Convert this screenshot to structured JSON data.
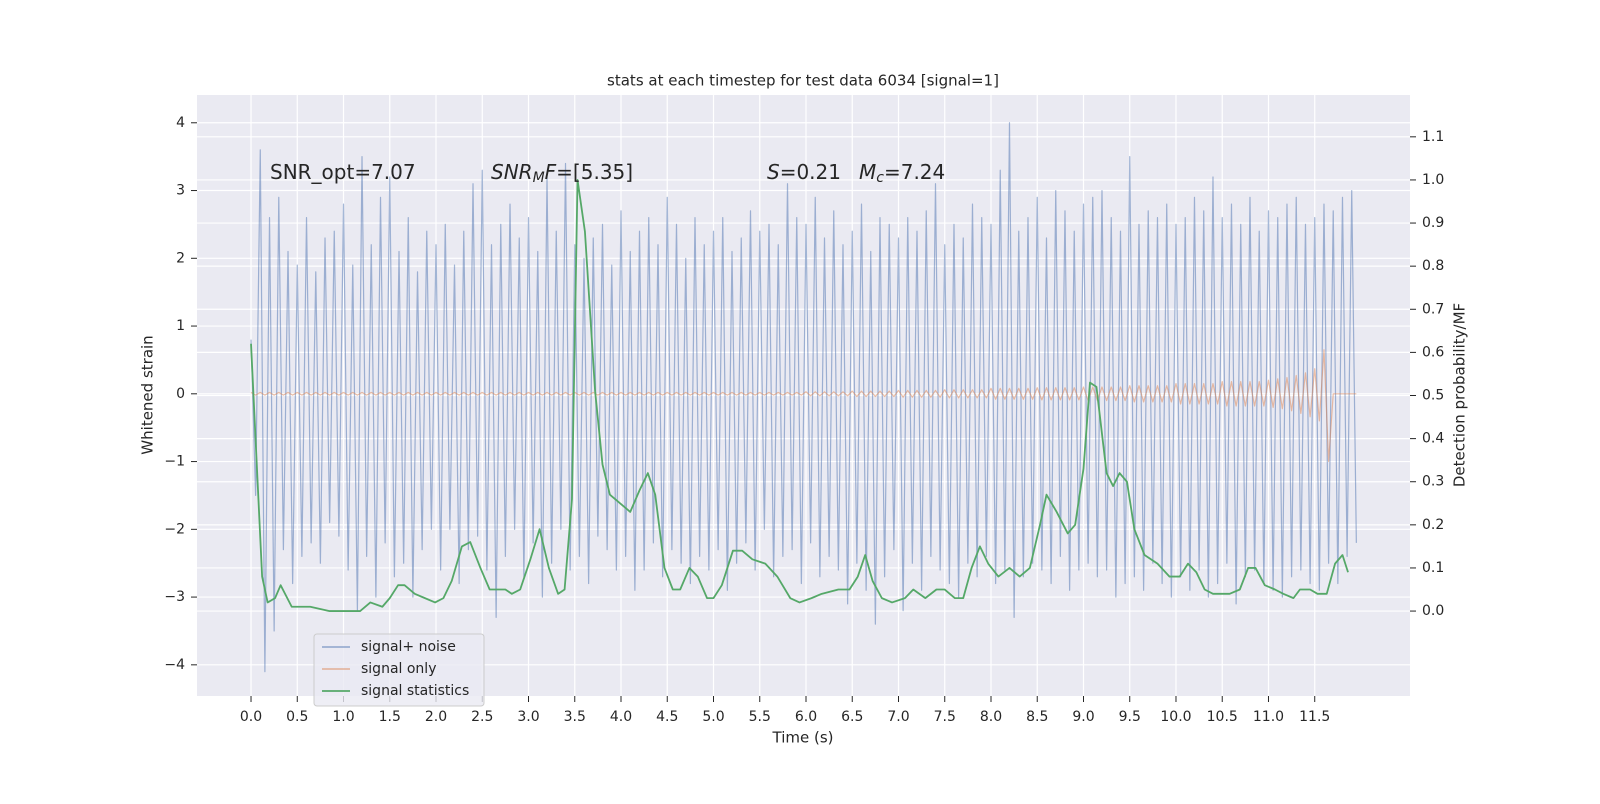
{
  "chart_data": {
    "type": "line",
    "title": "stats at each timestep for test data 6034 [signal=1]",
    "xlabel": "Time (s)",
    "ylabel": "Whitened strain",
    "y2label": "Detection probability/MF",
    "annotations": [
      [
        {
          "text": "SNR_opt=7.07"
        }
      ],
      [
        {
          "text": "SNR",
          "italic": true
        },
        {
          "text": "M",
          "italic": true,
          "sub": true
        },
        {
          "text": "F",
          "italic": true
        },
        {
          "text": "=[5.35]"
        }
      ],
      [
        {
          "text": "S",
          "italic": true
        },
        {
          "text": "=0.21"
        }
      ],
      [
        {
          "text": "M",
          "italic": true
        },
        {
          "text": "c",
          "italic": true,
          "sub": true
        },
        {
          "text": "=7.24"
        }
      ]
    ],
    "xlim": [
      -0.584,
      12.53
    ],
    "ylim": [
      -4.46,
      4.41
    ],
    "y2lim": [
      -0.197,
      1.197
    ],
    "xticks": [
      {
        "value": 0,
        "label": "0.0"
      },
      {
        "value": 0.5,
        "label": "0.5"
      },
      {
        "value": 1,
        "label": "1.0"
      },
      {
        "value": 1.5,
        "label": "1.5"
      },
      {
        "value": 2,
        "label": "2.0"
      },
      {
        "value": 2.5,
        "label": "2.5"
      },
      {
        "value": 3,
        "label": "3.0"
      },
      {
        "value": 3.5,
        "label": "3.5"
      },
      {
        "value": 4,
        "label": "4.0"
      },
      {
        "value": 4.5,
        "label": "4.5"
      },
      {
        "value": 5,
        "label": "5.0"
      },
      {
        "value": 5.5,
        "label": "5.5"
      },
      {
        "value": 6,
        "label": "6.0"
      },
      {
        "value": 6.5,
        "label": "6.5"
      },
      {
        "value": 7,
        "label": "7.0"
      },
      {
        "value": 7.5,
        "label": "7.5"
      },
      {
        "value": 8,
        "label": "8.0"
      },
      {
        "value": 8.5,
        "label": "8.5"
      },
      {
        "value": 9,
        "label": "9.0"
      },
      {
        "value": 9.5,
        "label": "9.5"
      },
      {
        "value": 10,
        "label": "10.0"
      },
      {
        "value": 10.5,
        "label": "10.5"
      },
      {
        "value": 11,
        "label": "11.0"
      },
      {
        "value": 11.5,
        "label": "11.5"
      }
    ],
    "yticks": [
      {
        "value": -4,
        "label": "−4"
      },
      {
        "value": -3,
        "label": "−3"
      },
      {
        "value": -2,
        "label": "−2"
      },
      {
        "value": -1,
        "label": "−1"
      },
      0,
      1,
      2,
      3,
      4
    ],
    "y2ticks": [
      {
        "value": 0,
        "label": "0.0"
      },
      {
        "value": 0.1,
        "label": "0.1"
      },
      {
        "value": 0.2,
        "label": "0.2"
      },
      {
        "value": 0.3,
        "label": "0.3"
      },
      {
        "value": 0.4,
        "label": "0.4"
      },
      {
        "value": 0.5,
        "label": "0.5"
      },
      {
        "value": 0.6,
        "label": "0.6"
      },
      {
        "value": 0.7,
        "label": "0.7"
      },
      {
        "value": 0.8,
        "label": "0.8"
      },
      {
        "value": 0.9,
        "label": "0.9"
      },
      {
        "value": 1,
        "label": "1.0"
      },
      {
        "value": 1.1,
        "label": "1.1"
      }
    ],
    "grid": true,
    "legend": "lower left",
    "x": [
      0,
      0.05,
      0.1,
      0.15,
      0.2,
      0.25,
      0.3,
      0.35,
      0.4,
      0.45,
      0.5,
      0.55,
      0.6,
      0.65,
      0.7,
      0.75,
      0.8,
      0.85,
      0.9,
      0.95,
      1,
      1.05,
      1.1,
      1.15,
      1.2,
      1.25,
      1.3,
      1.35,
      1.4,
      1.45,
      1.5,
      1.55,
      1.6,
      1.65,
      1.7,
      1.75,
      1.8,
      1.85,
      1.9,
      1.95,
      2,
      2.05,
      2.1,
      2.15,
      2.2,
      2.25,
      2.3,
      2.35,
      2.4,
      2.45,
      2.5,
      2.55,
      2.6,
      2.65,
      2.7,
      2.75,
      2.8,
      2.85,
      2.9,
      2.95,
      3,
      3.05,
      3.1,
      3.15,
      3.2,
      3.25,
      3.3,
      3.35,
      3.4,
      3.45,
      3.5,
      3.55,
      3.6,
      3.65,
      3.7,
      3.75,
      3.8,
      3.85,
      3.9,
      3.95,
      4,
      4.05,
      4.1,
      4.15,
      4.2,
      4.25,
      4.3,
      4.35,
      4.4,
      4.45,
      4.5,
      4.55,
      4.6,
      4.65,
      4.7,
      4.75,
      4.8,
      4.85,
      4.9,
      4.95,
      5,
      5.05,
      5.1,
      5.15,
      5.2,
      5.25,
      5.3,
      5.35,
      5.4,
      5.45,
      5.5,
      5.55,
      5.6,
      5.65,
      5.7,
      5.75,
      5.8,
      5.85,
      5.9,
      5.95,
      6,
      6.05,
      6.1,
      6.15,
      6.2,
      6.25,
      6.3,
      6.35,
      6.4,
      6.45,
      6.5,
      6.55,
      6.6,
      6.65,
      6.7,
      6.75,
      6.8,
      6.85,
      6.9,
      6.95,
      7,
      7.05,
      7.1,
      7.15,
      7.2,
      7.25,
      7.3,
      7.35,
      7.4,
      7.45,
      7.5,
      7.55,
      7.6,
      7.65,
      7.7,
      7.75,
      7.8,
      7.85,
      7.9,
      7.95,
      8,
      8.05,
      8.1,
      8.15,
      8.2,
      8.25,
      8.3,
      8.35,
      8.4,
      8.45,
      8.5,
      8.55,
      8.6,
      8.65,
      8.7,
      8.75,
      8.8,
      8.85,
      8.9,
      8.95,
      9,
      9.05,
      9.1,
      9.15,
      9.2,
      9.25,
      9.3,
      9.35,
      9.4,
      9.45,
      9.5,
      9.55,
      9.6,
      9.65,
      9.7,
      9.75,
      9.8,
      9.85,
      9.9,
      9.95,
      10,
      10.05,
      10.1,
      10.15,
      10.2,
      10.25,
      10.3,
      10.35,
      10.4,
      10.45,
      10.5,
      10.55,
      10.6,
      10.65,
      10.7,
      10.75,
      10.8,
      10.85,
      10.9,
      10.95,
      11,
      11.05,
      11.1,
      11.15,
      11.2,
      11.25,
      11.3,
      11.35,
      11.4,
      11.45,
      11.5,
      11.55,
      11.6,
      11.65,
      11.7,
      11.75,
      11.8,
      11.85,
      11.9,
      11.95
    ],
    "series": [
      {
        "name": "signal+ noise",
        "color": "#4c72b0",
        "opacity": 0.5,
        "values": [
          0.8,
          -1.5,
          3.6,
          -4.1,
          2.6,
          -3.5,
          2.9,
          -2.3,
          2.1,
          -2.8,
          1.9,
          -2.4,
          2.6,
          -2.2,
          1.8,
          -2.5,
          2.3,
          -1.9,
          2.4,
          -2.1,
          2.8,
          -2.6,
          1.9,
          -3.2,
          3.5,
          -2.4,
          2.2,
          -3.0,
          2.9,
          -2.2,
          3.2,
          -2.7,
          2.1,
          -2.5,
          2.6,
          -3.0,
          1.8,
          -2.3,
          2.4,
          -2.0,
          2.2,
          -2.6,
          2.5,
          -2.0,
          1.9,
          -2.8,
          2.4,
          -2.3,
          3.1,
          -2.1,
          3.3,
          -2.6,
          2.2,
          -3.3,
          2.5,
          -2.4,
          2.8,
          -2.0,
          2.3,
          -2.7,
          2.6,
          -2.2,
          2.1,
          -3.0,
          3.2,
          -2.5,
          2.4,
          -2.0,
          3.4,
          -2.6,
          2.2,
          -2.4,
          2.0,
          -2.8,
          2.3,
          -2.1,
          2.5,
          -2.3,
          1.9,
          -2.6,
          2.7,
          -2.4,
          2.1,
          -2.9,
          2.4,
          -2.6,
          2.6,
          -2.2,
          2.2,
          -2.7,
          2.9,
          -2.3,
          2.5,
          -2.5,
          2.0,
          -2.8,
          2.6,
          -2.4,
          2.2,
          -2.6,
          2.4,
          -2.3,
          2.6,
          -2.9,
          2.1,
          -2.5,
          2.3,
          -2.2,
          2.7,
          -2.6,
          2.4,
          -2.0,
          2.5,
          -2.7,
          2.2,
          -2.4,
          3.1,
          -2.3,
          2.6,
          -2.8,
          2.5,
          -2.2,
          2.9,
          -2.7,
          2.3,
          -2.4,
          2.7,
          -2.6,
          2.2,
          -3.1,
          2.4,
          -2.5,
          2.8,
          -2.9,
          2.1,
          -3.4,
          2.6,
          -2.7,
          2.5,
          -2.3,
          2.3,
          -3.2,
          2.6,
          -2.5,
          2.4,
          -2.9,
          2.7,
          -2.4,
          3.1,
          -2.6,
          2.2,
          -2.8,
          2.5,
          -3.0,
          2.3,
          -2.5,
          2.8,
          -2.7,
          2.6,
          -2.4,
          2.5,
          -2.8,
          3.3,
          -2.6,
          4.0,
          -3.3,
          2.4,
          -2.7,
          2.6,
          -2.5,
          2.9,
          -2.6,
          2.3,
          -2.8,
          3.0,
          -2.4,
          2.7,
          -2.9,
          2.4,
          -2.6,
          2.8,
          -2.5,
          2.9,
          -2.7,
          3.0,
          -2.6,
          2.6,
          -3.0,
          2.4,
          -2.8,
          3.5,
          -2.7,
          2.5,
          -2.9,
          2.7,
          -2.5,
          2.6,
          -2.8,
          2.8,
          -3.0,
          2.5,
          -2.7,
          2.6,
          -2.9,
          2.9,
          -2.6,
          2.7,
          -3.0,
          3.2,
          -2.8,
          2.6,
          -2.5,
          2.8,
          -3.1,
          2.5,
          -2.7,
          2.9,
          -2.6,
          2.4,
          -2.8,
          2.7,
          -2.9,
          2.6,
          -3.0,
          2.8,
          -2.7,
          2.9,
          -2.6,
          2.5,
          -2.8,
          2.6,
          -2.9,
          2.8,
          -2.5,
          2.7,
          -2.8,
          2.9,
          -2.4,
          3.0,
          -2.2
        ]
      },
      {
        "name": "signal only",
        "color": "#dd8452",
        "opacity": 0.5,
        "values": [
          0.02,
          -0.02,
          0.02,
          -0.02,
          0.02,
          -0.02,
          0.02,
          -0.02,
          0.02,
          -0.02,
          0.02,
          -0.02,
          0.02,
          -0.02,
          0.02,
          -0.02,
          0.02,
          -0.02,
          0.02,
          -0.02,
          0.02,
          -0.02,
          0.02,
          -0.02,
          0.02,
          -0.02,
          0.02,
          -0.02,
          0.02,
          -0.02,
          0.02,
          -0.02,
          0.02,
          -0.02,
          0.02,
          -0.02,
          0.02,
          -0.02,
          0.02,
          -0.02,
          0.02,
          -0.02,
          0.02,
          -0.02,
          0.02,
          -0.02,
          0.02,
          -0.02,
          0.02,
          -0.02,
          0.02,
          -0.02,
          0.02,
          -0.02,
          0.02,
          -0.02,
          0.02,
          -0.02,
          0.02,
          -0.02,
          0.02,
          -0.02,
          0.02,
          -0.02,
          0.02,
          -0.02,
          0.02,
          -0.02,
          0.02,
          -0.02,
          0.02,
          -0.02,
          0.02,
          -0.02,
          0.02,
          -0.02,
          0.02,
          -0.02,
          0.02,
          -0.02,
          0.02,
          -0.02,
          0.02,
          -0.02,
          0.02,
          -0.02,
          0.02,
          -0.02,
          0.02,
          -0.02,
          0.02,
          -0.02,
          0.02,
          -0.02,
          0.02,
          -0.02,
          0.02,
          -0.02,
          0.02,
          -0.02,
          0.02,
          -0.02,
          0.02,
          -0.02,
          0.02,
          -0.02,
          0.02,
          -0.02,
          0.02,
          -0.02,
          0.02,
          -0.02,
          0.02,
          -0.02,
          0.02,
          -0.02,
          0.02,
          -0.02,
          0.02,
          -0.02,
          0.03,
          -0.03,
          0.03,
          -0.03,
          0.03,
          -0.03,
          0.03,
          -0.03,
          0.03,
          -0.03,
          0.04,
          -0.04,
          0.04,
          -0.04,
          0.04,
          -0.04,
          0.04,
          -0.04,
          0.04,
          -0.04,
          0.05,
          -0.05,
          0.05,
          -0.05,
          0.05,
          -0.05,
          0.05,
          -0.05,
          0.05,
          -0.05,
          0.06,
          -0.06,
          0.06,
          -0.06,
          0.06,
          -0.06,
          0.06,
          -0.06,
          0.06,
          -0.06,
          0.08,
          -0.08,
          0.08,
          -0.08,
          0.08,
          -0.08,
          0.08,
          -0.08,
          0.08,
          -0.08,
          0.09,
          -0.09,
          0.09,
          -0.09,
          0.09,
          -0.09,
          0.09,
          -0.09,
          0.09,
          -0.09,
          0.1,
          -0.1,
          0.1,
          -0.1,
          0.1,
          -0.1,
          0.1,
          -0.1,
          0.1,
          -0.1,
          0.12,
          -0.12,
          0.12,
          -0.12,
          0.12,
          -0.12,
          0.12,
          -0.12,
          0.12,
          -0.12,
          0.15,
          -0.15,
          0.15,
          -0.15,
          0.15,
          -0.15,
          0.15,
          -0.15,
          0.15,
          -0.15,
          0.18,
          -0.18,
          0.18,
          -0.18,
          0.18,
          -0.18,
          0.18,
          -0.18,
          0.18,
          -0.18,
          0.2,
          -0.2,
          0.22,
          -0.22,
          0.24,
          -0.25,
          0.27,
          -0.29,
          0.31,
          -0.34,
          0.37,
          -0.4,
          0.65,
          -1.0,
          0,
          0,
          0,
          0,
          0,
          0
        ]
      },
      {
        "name": "signal statistics",
        "color": "#55a868",
        "axis": "y2",
        "x": [
          0,
          0.12,
          0.18,
          0.26,
          0.32,
          0.44,
          0.64,
          0.85,
          1.02,
          1.18,
          1.29,
          1.42,
          1.5,
          1.59,
          1.66,
          1.77,
          1.88,
          1.99,
          2.08,
          2.17,
          2.28,
          2.37,
          2.48,
          2.58,
          2.75,
          2.82,
          2.91,
          3.02,
          3.12,
          3.22,
          3.32,
          3.39,
          3.47,
          3.53,
          3.61,
          3.72,
          3.8,
          3.88,
          3.99,
          4.1,
          4.2,
          4.29,
          4.37,
          4.47,
          4.56,
          4.64,
          4.74,
          4.83,
          4.93,
          5,
          5.09,
          5.21,
          5.31,
          5.42,
          5.56,
          5.69,
          5.83,
          5.93,
          6.06,
          6.17,
          6.35,
          6.47,
          6.56,
          6.64,
          6.72,
          6.82,
          6.93,
          7.07,
          7.16,
          7.29,
          7.41,
          7.5,
          7.61,
          7.7,
          7.79,
          7.88,
          7.97,
          8.08,
          8.2,
          8.31,
          8.42,
          8.53,
          8.6,
          8.71,
          8.83,
          8.91,
          9,
          9.07,
          9.14,
          9.25,
          9.32,
          9.39,
          9.47,
          9.55,
          9.66,
          9.8,
          9.93,
          10.04,
          10.13,
          10.22,
          10.31,
          10.4,
          10.58,
          10.69,
          10.78,
          10.86,
          10.96,
          11.07,
          11.16,
          11.27,
          11.34,
          11.45,
          11.53,
          11.63,
          11.72,
          11.8,
          11.86
        ],
        "values": [
          0.62,
          0.08,
          0.02,
          0.03,
          0.06,
          0.01,
          0.01,
          0,
          0,
          0,
          0.02,
          0.01,
          0.03,
          0.06,
          0.06,
          0.04,
          0.03,
          0.02,
          0.03,
          0.07,
          0.15,
          0.16,
          0.1,
          0.05,
          0.05,
          0.04,
          0.05,
          0.12,
          0.19,
          0.1,
          0.04,
          0.05,
          0.26,
          1,
          0.88,
          0.51,
          0.34,
          0.27,
          0.25,
          0.23,
          0.28,
          0.32,
          0.27,
          0.1,
          0.05,
          0.05,
          0.1,
          0.08,
          0.03,
          0.03,
          0.06,
          0.14,
          0.14,
          0.12,
          0.11,
          0.08,
          0.03,
          0.02,
          0.03,
          0.04,
          0.05,
          0.05,
          0.08,
          0.13,
          0.07,
          0.03,
          0.02,
          0.03,
          0.05,
          0.03,
          0.05,
          0.05,
          0.03,
          0.03,
          0.1,
          0.15,
          0.11,
          0.08,
          0.1,
          0.08,
          0.1,
          0.2,
          0.27,
          0.23,
          0.18,
          0.2,
          0.33,
          0.53,
          0.52,
          0.32,
          0.29,
          0.32,
          0.3,
          0.19,
          0.13,
          0.11,
          0.08,
          0.08,
          0.11,
          0.09,
          0.05,
          0.04,
          0.04,
          0.05,
          0.1,
          0.1,
          0.06,
          0.05,
          0.04,
          0.03,
          0.05,
          0.05,
          0.04,
          0.04,
          0.11,
          0.13,
          0.09
        ]
      }
    ]
  }
}
